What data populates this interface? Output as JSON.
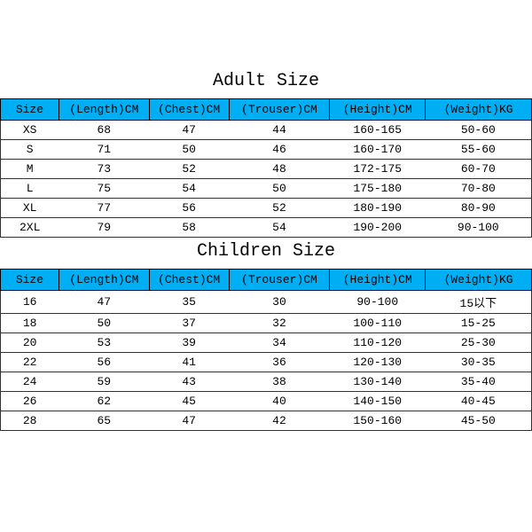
{
  "colors": {
    "header_bg": "#00aef4",
    "header_text": "#000000",
    "cell_bg": "#ffffff",
    "cell_text": "#000000",
    "border": "#333333",
    "page_bg": "#ffffff"
  },
  "typography": {
    "title_fontsize_pt": 15,
    "header_fontsize_pt": 10,
    "cell_fontsize_pt": 10,
    "font_family": "Courier New, monospace"
  },
  "layout": {
    "column_widths_pct": [
      11,
      17,
      15,
      19,
      18,
      20
    ]
  },
  "adult": {
    "title": "Adult Size",
    "columns": [
      "Size",
      "(Length)CM",
      "(Chest)CM",
      "(Trouser)CM",
      "(Height)CM",
      "(Weight)KG"
    ],
    "rows": [
      [
        "XS",
        "68",
        "47",
        "44",
        "160-165",
        "50-60"
      ],
      [
        "S",
        "71",
        "50",
        "46",
        "160-170",
        "55-60"
      ],
      [
        "M",
        "73",
        "52",
        "48",
        "172-175",
        "60-70"
      ],
      [
        "L",
        "75",
        "54",
        "50",
        "175-180",
        "70-80"
      ],
      [
        "XL",
        "77",
        "56",
        "52",
        "180-190",
        "80-90"
      ],
      [
        "2XL",
        "79",
        "58",
        "54",
        "190-200",
        "90-100"
      ]
    ]
  },
  "children": {
    "title": "Children Size",
    "columns": [
      "Size",
      "(Length)CM",
      "(Chest)CM",
      "(Trouser)CM",
      "(Height)CM",
      "(Weight)KG"
    ],
    "rows": [
      [
        "16",
        "47",
        "35",
        "30",
        "90-100",
        "15以下"
      ],
      [
        "18",
        "50",
        "37",
        "32",
        "100-110",
        "15-25"
      ],
      [
        "20",
        "53",
        "39",
        "34",
        "110-120",
        "25-30"
      ],
      [
        "22",
        "56",
        "41",
        "36",
        "120-130",
        "30-35"
      ],
      [
        "24",
        "59",
        "43",
        "38",
        "130-140",
        "35-40"
      ],
      [
        "26",
        "62",
        "45",
        "40",
        "140-150",
        "40-45"
      ],
      [
        "28",
        "65",
        "47",
        "42",
        "150-160",
        "45-50"
      ]
    ]
  }
}
